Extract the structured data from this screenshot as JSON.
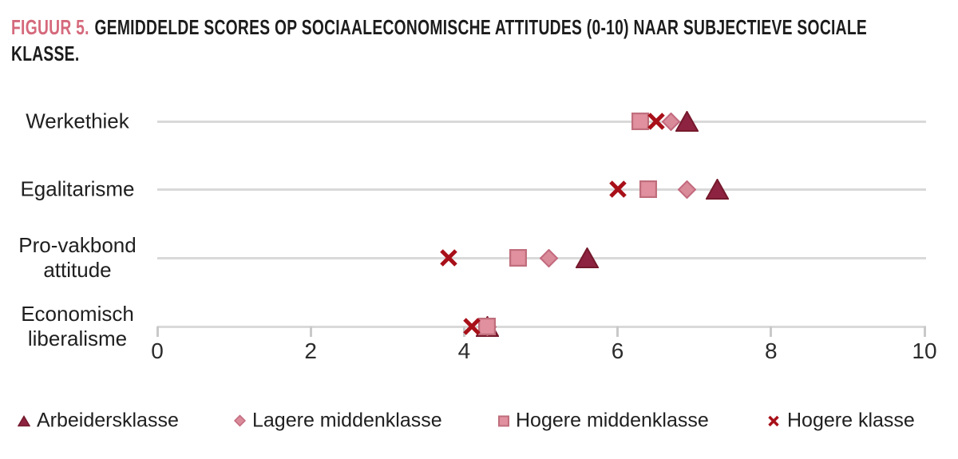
{
  "header": {
    "figure_label": "FIGUUR 5.",
    "title_line1": "GEMIDDELDE SCORES OP SOCIAALECONOMISCHE ATTITUDES (0-10) NAAR SUBJECTIEVE SOCIALE",
    "title_line2": "KLASSE."
  },
  "colors": {
    "figure_label_pink": "#d5697c",
    "title_text": "#1c1c1c",
    "grid_line": "#d9d9d9",
    "tick_mark": "#c9c9c9",
    "axis_text": "#2b2b2b",
    "category_text": "#1f1f1f",
    "arbeidersklasse_fill": "#8d2340",
    "lagere_middenklasse_fill": "#d98b9a",
    "hogere_middenklasse_fill": "#e0909e",
    "hogere_klasse_stroke": "#a81019"
  },
  "chart_data": {
    "type": "scatter",
    "subtype": "dot-plot",
    "title": "FIGUUR 5. GEMIDDELDE SCORES OP SOCIAALECONOMISCHE ATTITUDES (0-10) NAAR SUBJECTIEVE SOCIALE KLASSE.",
    "categories": [
      "Werkethiek",
      "Egalitarisme",
      "Pro-vakbond attitude",
      "Economisch liberalisme"
    ],
    "xlabel": "",
    "ylabel": "",
    "xlim": [
      0,
      10
    ],
    "xticks": [
      0,
      2,
      4,
      6,
      8,
      10
    ],
    "grid": "horizontal category lines only",
    "legend_position": "bottom",
    "series": [
      {
        "name": "Arbeidersklasse",
        "marker": "triangle",
        "fill": "#8d2340",
        "stroke": "#75192c",
        "values": [
          6.9,
          7.3,
          5.6,
          4.3
        ]
      },
      {
        "name": "Lagere middenklasse",
        "marker": "diamond",
        "fill": "#d98b9a",
        "stroke": "#c3697e",
        "values": [
          6.7,
          6.9,
          5.1,
          4.3
        ]
      },
      {
        "name": "Hogere middenklasse",
        "marker": "square",
        "fill": "#e0909e",
        "stroke": "#c06e7c",
        "values": [
          6.3,
          6.4,
          4.7,
          4.3
        ]
      },
      {
        "name": "Hogere klasse",
        "marker": "x",
        "fill": "none",
        "stroke": "#a81019",
        "values": [
          6.5,
          6.0,
          3.8,
          4.1
        ]
      }
    ]
  }
}
